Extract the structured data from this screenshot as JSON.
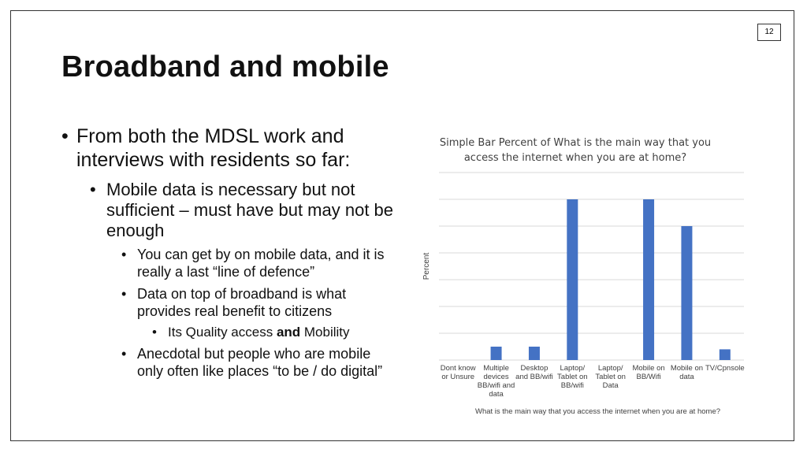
{
  "page_number": "12",
  "title": "Broadband and mobile",
  "bullets": [
    {
      "level": 1,
      "text": "From both the MDSL work and interviews with residents so far:"
    },
    {
      "level": 2,
      "text": "Mobile data is necessary but not sufficient – must have but may not be enough"
    },
    {
      "level": 3,
      "text": "You can get by on mobile data, and it is really a last “line of defence”"
    },
    {
      "level": 3,
      "text": "Data on top of broadband is what provides real benefit to citizens"
    },
    {
      "level": 4,
      "text_before": "Its Quality access ",
      "text_bold": "and",
      "text_after": " Mobility"
    },
    {
      "level": 3,
      "text": "Anecdotal but people who are mobile only often like places “to be / do digital”"
    }
  ],
  "bullet_char": "•",
  "chart_data": {
    "type": "bar",
    "title": "Simple Bar Percent of What is the main way that you access the internet when you are at home?",
    "xlabel": "What is the main way that you access the internet when you are at home?",
    "ylabel": "Percent",
    "categories": [
      [
        "Dont know",
        "or Unsure"
      ],
      [
        "Multiple",
        "devices",
        "BB/wifi and",
        "data"
      ],
      [
        "Desktop",
        "and BB/wifi"
      ],
      [
        "Laptop/",
        "Tablet on",
        "BB/wifi"
      ],
      [
        "Laptop/",
        "Tablet on",
        "Data"
      ],
      [
        "Mobile on",
        "BB/Wifi"
      ],
      [
        "Mobile on",
        "data"
      ],
      [
        "TV/Cpnsole"
      ]
    ],
    "values": [
      0,
      2.5,
      2.5,
      30,
      0,
      30,
      25,
      2
    ],
    "ylim": [
      0,
      35
    ],
    "grid": true,
    "bar_color": "#4472c4"
  }
}
